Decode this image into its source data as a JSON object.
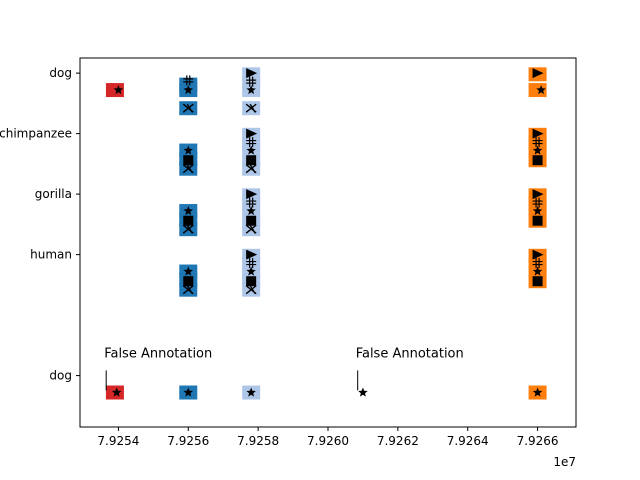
{
  "chart_data": {
    "type": "scatter",
    "title": "",
    "xlabel": "",
    "ylabel": "",
    "x_offset_label": "1e7",
    "xlim": [
      79252900,
      79267100
    ],
    "ylim": [
      -0.85,
      5.25
    ],
    "x_ticks": [
      {
        "value": 79254000,
        "label": "7.9254"
      },
      {
        "value": 79256000,
        "label": "7.9256"
      },
      {
        "value": 79258000,
        "label": "7.9258"
      },
      {
        "value": 79260000,
        "label": "7.9260"
      },
      {
        "value": 79262000,
        "label": "7.9262"
      },
      {
        "value": 79264000,
        "label": "7.9264"
      },
      {
        "value": 79266000,
        "label": "7.9266"
      }
    ],
    "y_ticks": [
      {
        "value": 5,
        "label": "dog"
      },
      {
        "value": 4,
        "label": "chimpanzee"
      },
      {
        "value": 3,
        "label": "gorilla"
      },
      {
        "value": 2,
        "label": "human"
      },
      {
        "value": 0,
        "label": "dog"
      }
    ],
    "colors": {
      "red": "#d62728",
      "blue": "#1f77b4",
      "lightblue": "#aec7e8",
      "orange": "#ff7f0e",
      "glyph": "#000000"
    },
    "annotations": [
      {
        "text": "False Annotation",
        "x": 79253650,
        "y": 0.3
      },
      {
        "text": "False Annotation",
        "x": 79260850,
        "y": 0.3
      }
    ],
    "boxes": [
      {
        "x": 79253900,
        "y": 4.72,
        "color": "red"
      },
      {
        "x": 79256000,
        "y": 4.81,
        "color": "blue"
      },
      {
        "x": 79256000,
        "y": 4.72,
        "color": "blue"
      },
      {
        "x": 79256000,
        "y": 4.42,
        "color": "blue"
      },
      {
        "x": 79257800,
        "y": 4.98,
        "color": "lightblue"
      },
      {
        "x": 79257800,
        "y": 4.84,
        "color": "lightblue"
      },
      {
        "x": 79257800,
        "y": 4.72,
        "color": "lightblue"
      },
      {
        "x": 79257800,
        "y": 4.42,
        "color": "lightblue"
      },
      {
        "x": 79266000,
        "y": 4.98,
        "color": "orange"
      },
      {
        "x": 79266000,
        "y": 4.72,
        "color": "orange"
      },
      {
        "x": 79256000,
        "y": 3.72,
        "color": "blue"
      },
      {
        "x": 79256000,
        "y": 3.58,
        "color": "blue"
      },
      {
        "x": 79256000,
        "y": 3.42,
        "color": "blue"
      },
      {
        "x": 79257800,
        "y": 3.98,
        "color": "lightblue"
      },
      {
        "x": 79257800,
        "y": 3.84,
        "color": "lightblue"
      },
      {
        "x": 79257800,
        "y": 3.72,
        "color": "lightblue"
      },
      {
        "x": 79257800,
        "y": 3.56,
        "color": "lightblue"
      },
      {
        "x": 79257800,
        "y": 3.42,
        "color": "lightblue"
      },
      {
        "x": 79266000,
        "y": 3.98,
        "color": "orange"
      },
      {
        "x": 79266000,
        "y": 3.84,
        "color": "orange"
      },
      {
        "x": 79266000,
        "y": 3.72,
        "color": "orange"
      },
      {
        "x": 79266000,
        "y": 3.56,
        "color": "orange"
      },
      {
        "x": 79256000,
        "y": 2.72,
        "color": "blue"
      },
      {
        "x": 79256000,
        "y": 2.58,
        "color": "blue"
      },
      {
        "x": 79256000,
        "y": 2.42,
        "color": "blue"
      },
      {
        "x": 79257800,
        "y": 2.98,
        "color": "lightblue"
      },
      {
        "x": 79257800,
        "y": 2.84,
        "color": "lightblue"
      },
      {
        "x": 79257800,
        "y": 2.72,
        "color": "lightblue"
      },
      {
        "x": 79257800,
        "y": 2.56,
        "color": "lightblue"
      },
      {
        "x": 79257800,
        "y": 2.42,
        "color": "lightblue"
      },
      {
        "x": 79266000,
        "y": 2.98,
        "color": "orange"
      },
      {
        "x": 79266000,
        "y": 2.84,
        "color": "orange"
      },
      {
        "x": 79266000,
        "y": 2.72,
        "color": "orange"
      },
      {
        "x": 79266000,
        "y": 2.56,
        "color": "orange"
      },
      {
        "x": 79256000,
        "y": 1.72,
        "color": "blue"
      },
      {
        "x": 79256000,
        "y": 1.58,
        "color": "blue"
      },
      {
        "x": 79256000,
        "y": 1.42,
        "color": "blue"
      },
      {
        "x": 79257800,
        "y": 1.98,
        "color": "lightblue"
      },
      {
        "x": 79257800,
        "y": 1.84,
        "color": "lightblue"
      },
      {
        "x": 79257800,
        "y": 1.72,
        "color": "lightblue"
      },
      {
        "x": 79257800,
        "y": 1.56,
        "color": "lightblue"
      },
      {
        "x": 79257800,
        "y": 1.42,
        "color": "lightblue"
      },
      {
        "x": 79266000,
        "y": 1.98,
        "color": "orange"
      },
      {
        "x": 79266000,
        "y": 1.84,
        "color": "orange"
      },
      {
        "x": 79266000,
        "y": 1.72,
        "color": "orange"
      },
      {
        "x": 79266000,
        "y": 1.56,
        "color": "orange"
      },
      {
        "x": 79253900,
        "y": -0.28,
        "color": "red"
      },
      {
        "x": 79256000,
        "y": -0.28,
        "color": "blue"
      },
      {
        "x": 79257800,
        "y": -0.28,
        "color": "lightblue"
      },
      {
        "x": 79266000,
        "y": -0.28,
        "color": "orange"
      }
    ],
    "glyphs": [
      {
        "x": 79254000,
        "y": 4.72,
        "shape": "star"
      },
      {
        "x": 79256000,
        "y": 4.88,
        "shape": "hash"
      },
      {
        "x": 79256000,
        "y": 4.72,
        "shape": "star"
      },
      {
        "x": 79256000,
        "y": 4.42,
        "shape": "x"
      },
      {
        "x": 79257800,
        "y": 5.0,
        "shape": "triangle"
      },
      {
        "x": 79257800,
        "y": 4.86,
        "shape": "hash"
      },
      {
        "x": 79257800,
        "y": 4.72,
        "shape": "star"
      },
      {
        "x": 79257800,
        "y": 4.42,
        "shape": "x"
      },
      {
        "x": 79266000,
        "y": 5.0,
        "shape": "triangle"
      },
      {
        "x": 79266100,
        "y": 4.72,
        "shape": "star"
      },
      {
        "x": 79256000,
        "y": 3.72,
        "shape": "star"
      },
      {
        "x": 79256000,
        "y": 3.56,
        "shape": "square"
      },
      {
        "x": 79256000,
        "y": 3.42,
        "shape": "x"
      },
      {
        "x": 79257800,
        "y": 4.0,
        "shape": "triangle"
      },
      {
        "x": 79257800,
        "y": 3.86,
        "shape": "hash"
      },
      {
        "x": 79257800,
        "y": 3.72,
        "shape": "star"
      },
      {
        "x": 79257800,
        "y": 3.56,
        "shape": "square"
      },
      {
        "x": 79257800,
        "y": 3.42,
        "shape": "x"
      },
      {
        "x": 79266000,
        "y": 4.0,
        "shape": "triangle"
      },
      {
        "x": 79266000,
        "y": 3.86,
        "shape": "hash"
      },
      {
        "x": 79266000,
        "y": 3.72,
        "shape": "star"
      },
      {
        "x": 79266000,
        "y": 3.56,
        "shape": "square"
      },
      {
        "x": 79256000,
        "y": 2.72,
        "shape": "star"
      },
      {
        "x": 79256000,
        "y": 2.56,
        "shape": "square"
      },
      {
        "x": 79256000,
        "y": 2.42,
        "shape": "x"
      },
      {
        "x": 79257800,
        "y": 3.0,
        "shape": "triangle"
      },
      {
        "x": 79257800,
        "y": 2.86,
        "shape": "hash"
      },
      {
        "x": 79257800,
        "y": 2.72,
        "shape": "star"
      },
      {
        "x": 79257800,
        "y": 2.56,
        "shape": "square"
      },
      {
        "x": 79257800,
        "y": 2.42,
        "shape": "x"
      },
      {
        "x": 79266000,
        "y": 3.0,
        "shape": "triangle"
      },
      {
        "x": 79266000,
        "y": 2.86,
        "shape": "hash"
      },
      {
        "x": 79266000,
        "y": 2.72,
        "shape": "star"
      },
      {
        "x": 79266000,
        "y": 2.56,
        "shape": "square"
      },
      {
        "x": 79256000,
        "y": 1.72,
        "shape": "star"
      },
      {
        "x": 79256000,
        "y": 1.56,
        "shape": "square"
      },
      {
        "x": 79256000,
        "y": 1.42,
        "shape": "x"
      },
      {
        "x": 79257800,
        "y": 2.0,
        "shape": "triangle"
      },
      {
        "x": 79257800,
        "y": 1.86,
        "shape": "hash"
      },
      {
        "x": 79257800,
        "y": 1.72,
        "shape": "star"
      },
      {
        "x": 79257800,
        "y": 1.56,
        "shape": "square"
      },
      {
        "x": 79257800,
        "y": 1.42,
        "shape": "x"
      },
      {
        "x": 79266000,
        "y": 2.0,
        "shape": "triangle"
      },
      {
        "x": 79266000,
        "y": 1.86,
        "shape": "hash"
      },
      {
        "x": 79266000,
        "y": 1.72,
        "shape": "star"
      },
      {
        "x": 79266000,
        "y": 1.56,
        "shape": "square"
      },
      {
        "x": 79253950,
        "y": -0.28,
        "shape": "star"
      },
      {
        "x": 79256000,
        "y": -0.28,
        "shape": "star"
      },
      {
        "x": 79257800,
        "y": -0.28,
        "shape": "star"
      },
      {
        "x": 79261000,
        "y": -0.28,
        "shape": "star"
      },
      {
        "x": 79266000,
        "y": -0.28,
        "shape": "star"
      }
    ]
  }
}
